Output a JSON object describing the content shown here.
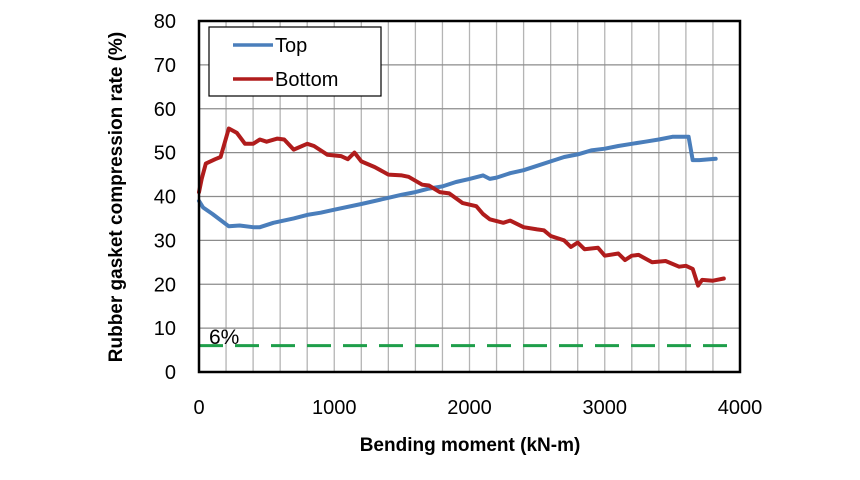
{
  "chart_data": {
    "type": "line",
    "title": "",
    "xlabel": "Bending moment (kN-m)",
    "ylabel": "Rubber gasket compression rate (%)",
    "xlim": [
      0,
      4000
    ],
    "ylim": [
      0,
      80
    ],
    "xticks": [
      0,
      1000,
      2000,
      3000,
      4000
    ],
    "yticks": [
      0,
      10,
      20,
      30,
      40,
      50,
      60,
      70,
      80
    ],
    "x_minor_grid_step": 200,
    "grid": true,
    "legend_position": "upper-left",
    "series": [
      {
        "name": "Top",
        "color": "#4a7ebb",
        "points": [
          [
            0,
            39
          ],
          [
            30,
            37.5
          ],
          [
            100,
            36
          ],
          [
            220,
            33.2
          ],
          [
            300,
            33.4
          ],
          [
            400,
            33.0
          ],
          [
            450,
            33.0
          ],
          [
            550,
            34.0
          ],
          [
            700,
            35.0
          ],
          [
            800,
            35.8
          ],
          [
            900,
            36.3
          ],
          [
            1000,
            37.0
          ],
          [
            1200,
            38.3
          ],
          [
            1400,
            39.7
          ],
          [
            1500,
            40.4
          ],
          [
            1600,
            41.0
          ],
          [
            1700,
            41.8
          ],
          [
            1800,
            42.3
          ],
          [
            1900,
            43.3
          ],
          [
            2000,
            44.0
          ],
          [
            2100,
            44.8
          ],
          [
            2150,
            44.0
          ],
          [
            2200,
            44.3
          ],
          [
            2300,
            45.3
          ],
          [
            2400,
            46.0
          ],
          [
            2500,
            47.0
          ],
          [
            2600,
            48.0
          ],
          [
            2700,
            49.0
          ],
          [
            2800,
            49.6
          ],
          [
            2900,
            50.5
          ],
          [
            3000,
            50.9
          ],
          [
            3100,
            51.5
          ],
          [
            3200,
            52.0
          ],
          [
            3300,
            52.5
          ],
          [
            3400,
            53.0
          ],
          [
            3500,
            53.6
          ],
          [
            3620,
            53.6
          ],
          [
            3650,
            48.3
          ],
          [
            3700,
            48.3
          ],
          [
            3820,
            48.6
          ]
        ]
      },
      {
        "name": "Bottom",
        "color": "#b01c1c",
        "points": [
          [
            0,
            41
          ],
          [
            20,
            44
          ],
          [
            50,
            47.5
          ],
          [
            120,
            48.5
          ],
          [
            160,
            49.0
          ],
          [
            220,
            55.5
          ],
          [
            280,
            54.5
          ],
          [
            340,
            52.0
          ],
          [
            400,
            52.0
          ],
          [
            450,
            53.0
          ],
          [
            500,
            52.5
          ],
          [
            580,
            53.2
          ],
          [
            630,
            53.0
          ],
          [
            700,
            50.7
          ],
          [
            800,
            52.0
          ],
          [
            850,
            51.5
          ],
          [
            950,
            49.5
          ],
          [
            1050,
            49.2
          ],
          [
            1100,
            48.5
          ],
          [
            1150,
            50.0
          ],
          [
            1200,
            48.0
          ],
          [
            1300,
            46.7
          ],
          [
            1400,
            45.0
          ],
          [
            1500,
            44.8
          ],
          [
            1550,
            44.5
          ],
          [
            1650,
            42.7
          ],
          [
            1700,
            42.5
          ],
          [
            1780,
            41.0
          ],
          [
            1850,
            40.7
          ],
          [
            1950,
            38.5
          ],
          [
            2050,
            37.8
          ],
          [
            2100,
            36.0
          ],
          [
            2150,
            34.8
          ],
          [
            2250,
            34.0
          ],
          [
            2300,
            34.5
          ],
          [
            2400,
            33.0
          ],
          [
            2500,
            32.5
          ],
          [
            2550,
            32.3
          ],
          [
            2600,
            31.0
          ],
          [
            2700,
            30.0
          ],
          [
            2750,
            28.5
          ],
          [
            2800,
            29.5
          ],
          [
            2850,
            28.0
          ],
          [
            2950,
            28.3
          ],
          [
            3000,
            26.5
          ],
          [
            3100,
            27.0
          ],
          [
            3150,
            25.5
          ],
          [
            3200,
            26.5
          ],
          [
            3250,
            26.7
          ],
          [
            3350,
            25.0
          ],
          [
            3450,
            25.3
          ],
          [
            3550,
            24.0
          ],
          [
            3600,
            24.2
          ],
          [
            3650,
            23.5
          ],
          [
            3690,
            19.7
          ],
          [
            3720,
            21.0
          ],
          [
            3800,
            20.8
          ],
          [
            3880,
            21.3
          ]
        ]
      }
    ],
    "annotations": [
      {
        "type": "hline",
        "y": 6,
        "style": "dashed",
        "color": "#1e9e4a",
        "label": "6%"
      }
    ]
  },
  "legend": {
    "items": [
      {
        "label": "Top",
        "color": "#4a7ebb"
      },
      {
        "label": "Bottom",
        "color": "#b01c1c"
      }
    ]
  },
  "axes": {
    "x_title": "Bending moment (kN-m)",
    "y_title": "Rubber gasket compression rate (%)",
    "x_tick_labels": [
      "0",
      "1000",
      "2000",
      "3000",
      "4000"
    ],
    "y_tick_labels": [
      "0",
      "10",
      "20",
      "30",
      "40",
      "50",
      "60",
      "70",
      "80"
    ]
  },
  "annotation_label": "6%"
}
